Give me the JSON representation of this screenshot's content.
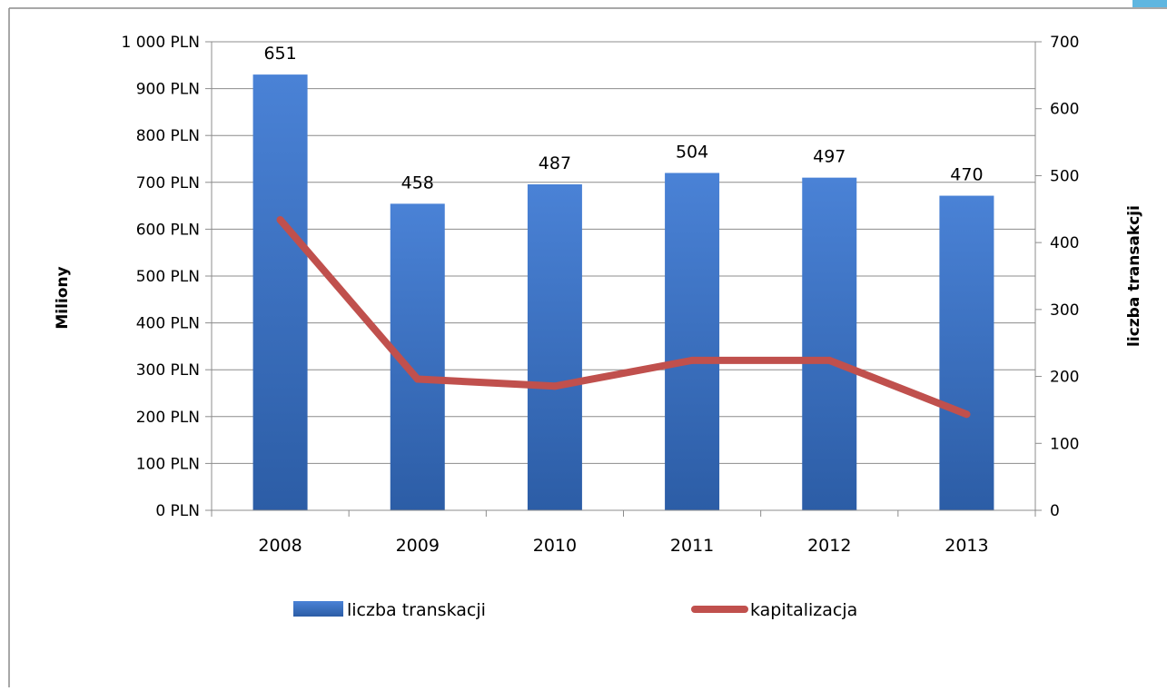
{
  "chart_data": {
    "type": "bar",
    "categories": [
      "2008",
      "2009",
      "2010",
      "2011",
      "2012",
      "2013"
    ],
    "series": [
      {
        "name": "liczba transkacji",
        "chart": "bar",
        "axis": "right",
        "values": [
          651,
          458,
          487,
          504,
          497,
          470
        ],
        "color": "#3a6fc4"
      },
      {
        "name": "kapitalizacja",
        "chart": "line",
        "axis": "left",
        "values": [
          620,
          280,
          265,
          320,
          320,
          205
        ],
        "color": "#c0504d"
      }
    ],
    "data_labels": [
      "651",
      "458",
      "487",
      "504",
      "497",
      "470"
    ],
    "y_left": {
      "label": "Miliony",
      "range": [
        0,
        1000
      ],
      "ticks": [
        "0 PLN",
        "100 PLN",
        "200 PLN",
        "300 PLN",
        "400 PLN",
        "500 PLN",
        "600 PLN",
        "700 PLN",
        "800 PLN",
        "900 PLN",
        "1 000 PLN"
      ]
    },
    "y_right": {
      "label": "liczba transakcji",
      "range": [
        0,
        700
      ],
      "ticks": [
        "0",
        "100",
        "200",
        "300",
        "400",
        "500",
        "600",
        "700"
      ]
    },
    "grid": true,
    "legend": "bottom"
  }
}
